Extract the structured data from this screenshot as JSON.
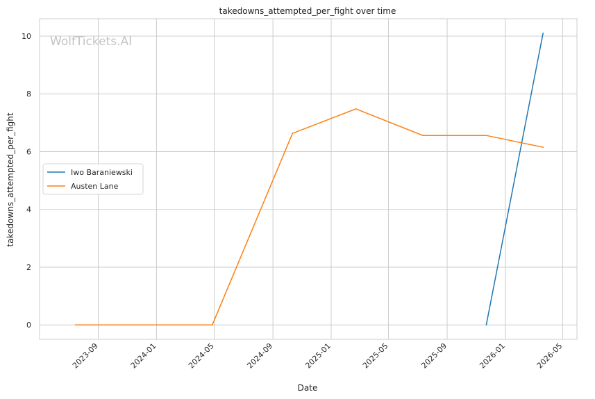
{
  "chart_data": {
    "type": "line",
    "title": "takedowns_attempted_per_fight over time",
    "xlabel": "Date",
    "ylabel": "takedowns_attempted_per_fight",
    "watermark": "WolfTickets.AI",
    "xlim": [
      "2023-05-01",
      "2026-05-31"
    ],
    "ylim": [
      -0.5,
      10.6
    ],
    "x_ticks": [
      "2023-09",
      "2024-01",
      "2024-05",
      "2024-09",
      "2025-01",
      "2025-05",
      "2025-09",
      "2026-01",
      "2026-05"
    ],
    "y_ticks": [
      0,
      2,
      4,
      6,
      8,
      10
    ],
    "grid": true,
    "legend_position": "center-left",
    "series": [
      {
        "name": "Iwo Baraniewski",
        "color": "#1f77b4",
        "points": [
          {
            "x": "2025-11-22",
            "y": 0
          },
          {
            "x": "2026-03-21",
            "y": 10.1
          }
        ]
      },
      {
        "name": "Austen Lane",
        "color": "#ff7f0e",
        "points": [
          {
            "x": "2023-07-15",
            "y": 0
          },
          {
            "x": "2024-04-27",
            "y": 0
          },
          {
            "x": "2024-10-12",
            "y": 6.63
          },
          {
            "x": "2025-02-22",
            "y": 7.48
          },
          {
            "x": "2025-07-12",
            "y": 6.56
          },
          {
            "x": "2025-11-22",
            "y": 6.56
          },
          {
            "x": "2026-03-21",
            "y": 6.15
          }
        ]
      }
    ]
  }
}
